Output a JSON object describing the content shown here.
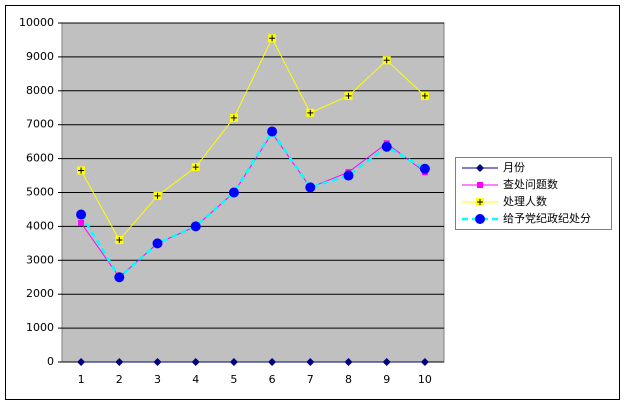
{
  "chart_data": {
    "type": "line",
    "categories": [
      "1",
      "2",
      "3",
      "4",
      "5",
      "6",
      "7",
      "8",
      "9",
      "10"
    ],
    "series": [
      {
        "name": "月份",
        "color": "#000080",
        "marker": "diamond",
        "marker_color": "#000080",
        "dash": false,
        "values": [
          0,
          0,
          0,
          0,
          0,
          0,
          0,
          0,
          0,
          0
        ]
      },
      {
        "name": "查处问题数",
        "color": "#ff00ff",
        "marker": "square",
        "marker_color": "#ff00ff",
        "dash": false,
        "values": [
          4100,
          2500,
          3500,
          4000,
          5000,
          6750,
          5150,
          5600,
          6450,
          5600
        ]
      },
      {
        "name": "处理人数",
        "color": "#ffff00",
        "marker": "plus",
        "marker_color": "#ffff00",
        "dash": false,
        "values": [
          5650,
          3600,
          4900,
          5750,
          7200,
          9550,
          7350,
          7850,
          8900,
          7850
        ]
      },
      {
        "name": "给予党纪政纪处分",
        "color": "#00ffff",
        "marker": "circle",
        "marker_color": "#0000ff",
        "dash": true,
        "values": [
          4350,
          2500,
          3500,
          4000,
          5000,
          6800,
          5150,
          5500,
          6350,
          5700
        ]
      }
    ],
    "ylim": [
      0,
      10000
    ],
    "yticks": [
      0,
      1000,
      2000,
      3000,
      4000,
      5000,
      6000,
      7000,
      8000,
      9000,
      10000
    ],
    "grid": true,
    "legend": "right"
  }
}
